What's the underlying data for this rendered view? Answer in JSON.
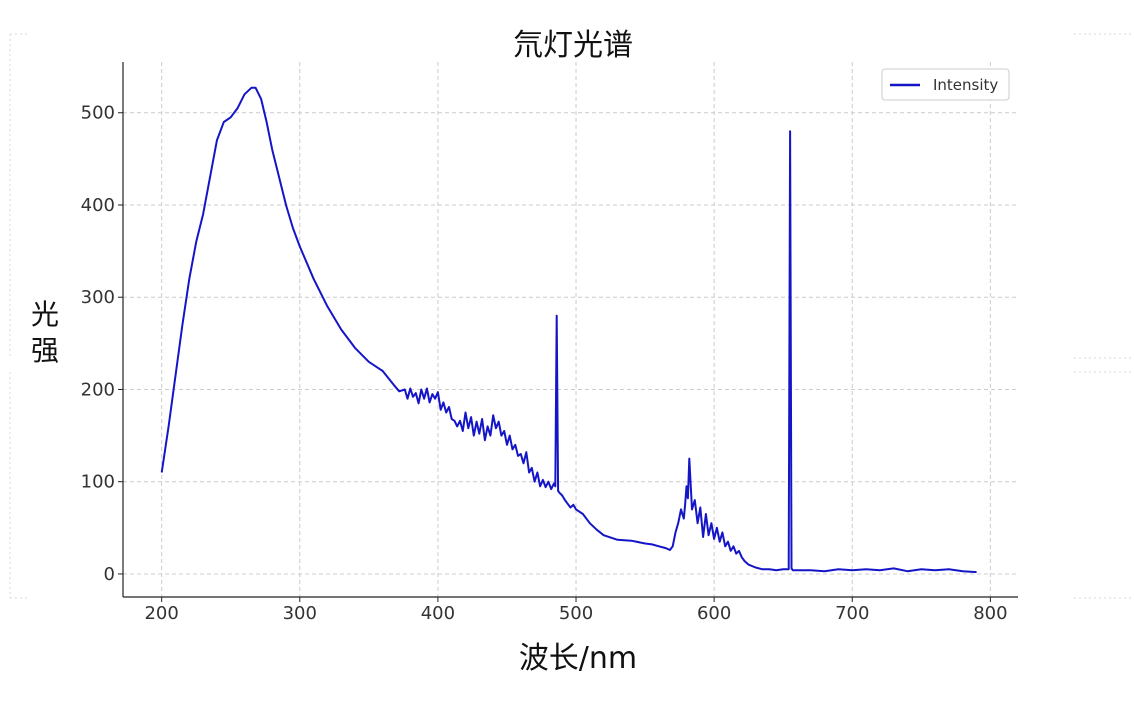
{
  "chart_data": {
    "type": "line",
    "title": "氘灯光谱",
    "xlabel": "波长/nm",
    "ylabel": "光强",
    "xlim": [
      172,
      820
    ],
    "ylim": [
      -25,
      555
    ],
    "xticks": [
      200,
      300,
      400,
      500,
      600,
      700,
      800
    ],
    "yticks": [
      0,
      100,
      200,
      300,
      400,
      500
    ],
    "grid": true,
    "legend_position": "top-right",
    "colors": {
      "line": "#1515c8"
    },
    "series": [
      {
        "name": "Intensity",
        "x": [
          200,
          205,
          210,
          215,
          220,
          225,
          230,
          235,
          240,
          245,
          250,
          255,
          260,
          265,
          268,
          272,
          276,
          280,
          285,
          290,
          295,
          300,
          310,
          320,
          330,
          340,
          350,
          360,
          368,
          372,
          376,
          378,
          380,
          382,
          384,
          386,
          388,
          390,
          392,
          394,
          396,
          398,
          400,
          402,
          404,
          406,
          408,
          410,
          412,
          414,
          416,
          418,
          420,
          422,
          424,
          426,
          428,
          430,
          432,
          434,
          436,
          438,
          440,
          442,
          444,
          446,
          448,
          450,
          452,
          454,
          456,
          458,
          460,
          462,
          464,
          466,
          468,
          470,
          472,
          474,
          476,
          478,
          480,
          482,
          484,
          485,
          486,
          487,
          488,
          490,
          492,
          494,
          496,
          498,
          500,
          505,
          510,
          515,
          520,
          530,
          540,
          550,
          555,
          560,
          565,
          568,
          570,
          572,
          574,
          576,
          578,
          579,
          580,
          581,
          582,
          584,
          586,
          588,
          590,
          592,
          594,
          596,
          598,
          600,
          602,
          604,
          606,
          608,
          610,
          612,
          614,
          616,
          618,
          620,
          622,
          625,
          630,
          635,
          640,
          645,
          650,
          654,
          655,
          656,
          657,
          658,
          660,
          670,
          680,
          690,
          700,
          710,
          720,
          730,
          740,
          750,
          760,
          770,
          780,
          790
        ],
        "values": [
          110,
          160,
          215,
          270,
          320,
          360,
          390,
          430,
          470,
          490,
          495,
          505,
          520,
          527,
          527,
          515,
          490,
          460,
          430,
          400,
          375,
          355,
          320,
          290,
          265,
          245,
          230,
          220,
          205,
          198,
          200,
          190,
          201,
          192,
          196,
          185,
          200,
          190,
          201,
          186,
          195,
          190,
          197,
          178,
          186,
          175,
          181,
          168,
          166,
          160,
          166,
          155,
          175,
          158,
          170,
          150,
          165,
          152,
          168,
          145,
          160,
          150,
          172,
          158,
          165,
          150,
          155,
          140,
          150,
          135,
          140,
          128,
          130,
          120,
          132,
          110,
          115,
          100,
          110,
          95,
          102,
          94,
          100,
          92,
          98,
          95,
          280,
          90,
          88,
          85,
          80,
          76,
          72,
          75,
          70,
          65,
          55,
          48,
          42,
          37,
          36,
          33,
          32,
          30,
          28,
          26,
          30,
          45,
          55,
          70,
          60,
          75,
          95,
          82,
          125,
          70,
          80,
          55,
          72,
          40,
          65,
          42,
          55,
          38,
          50,
          35,
          45,
          30,
          35,
          25,
          30,
          22,
          25,
          18,
          14,
          10,
          7,
          5,
          5,
          4,
          5,
          5,
          480,
          6,
          4,
          4,
          4,
          4,
          3,
          5,
          4,
          5,
          4,
          6,
          3,
          5,
          4,
          5,
          3,
          2
        ]
      }
    ]
  }
}
